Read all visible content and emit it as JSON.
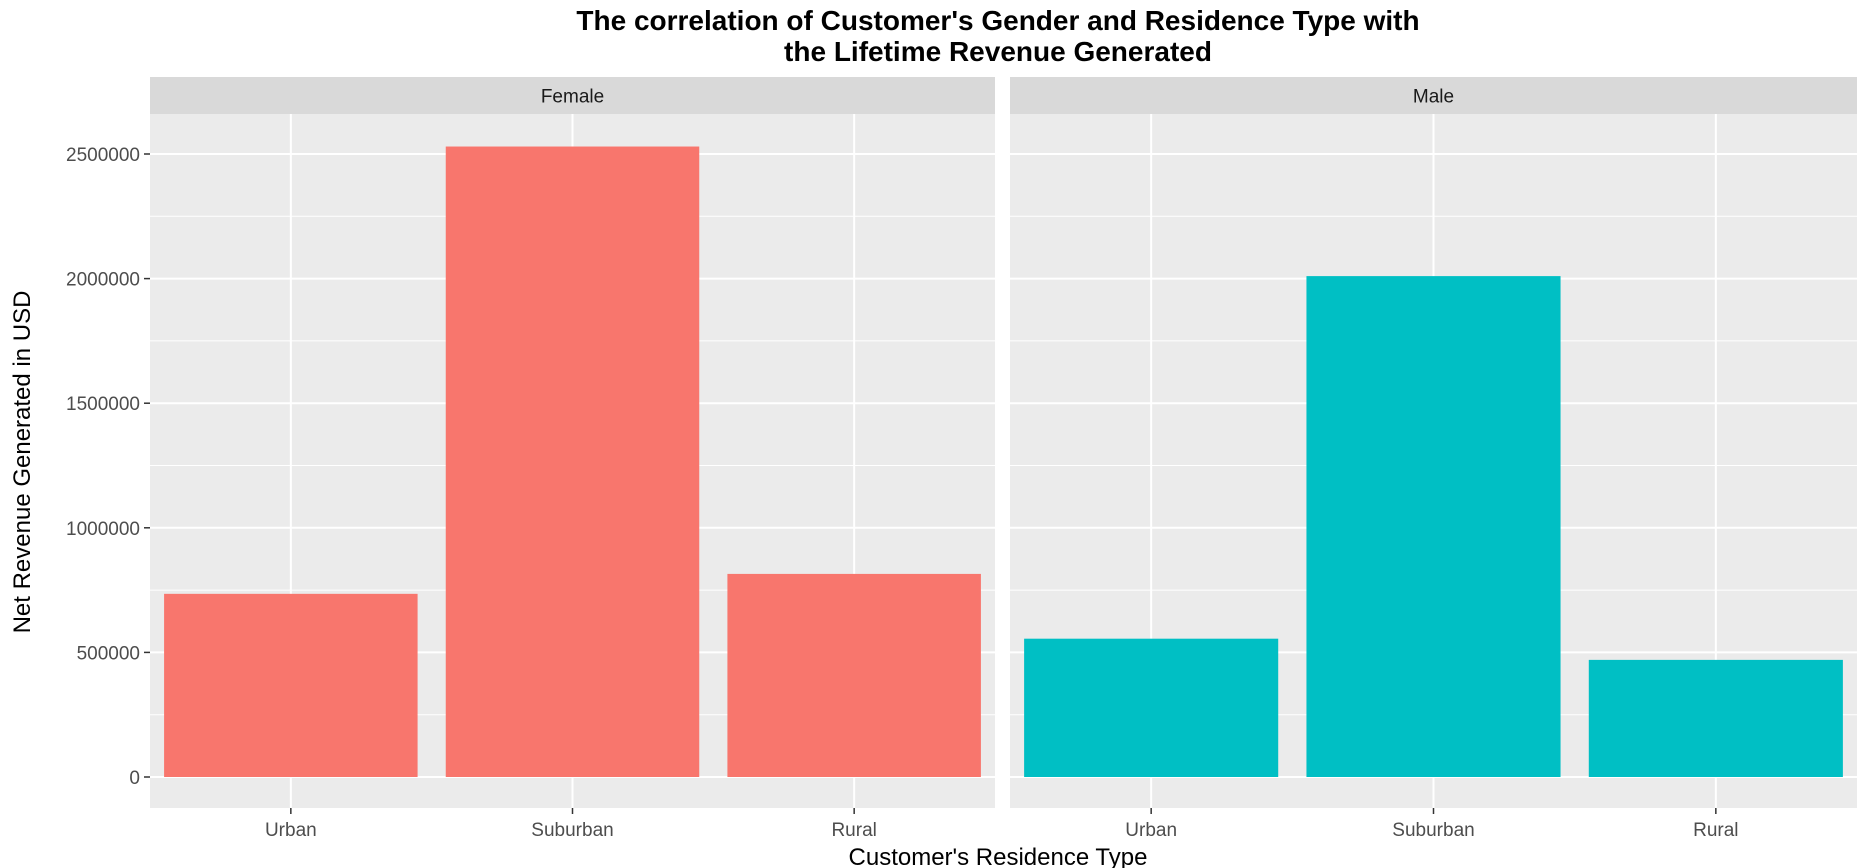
{
  "chart_data": {
    "type": "bar",
    "title": "The correlation of Customer's Gender and Residence Type with the Lifetime Revenue Generated",
    "title_lines": [
      "The correlation of Customer's Gender and Residence Type with",
      "the Lifetime Revenue Generated"
    ],
    "xlabel": "Customer's Residence Type",
    "ylabel": "Net Revenue Generated in USD",
    "categories": [
      "Urban",
      "Suburban",
      "Rural"
    ],
    "ylim": [
      0,
      2660000
    ],
    "yticks": [
      0,
      500000,
      1000000,
      1500000,
      2000000,
      2500000
    ],
    "ytick_labels": [
      "0",
      "500000",
      "1000000",
      "1500000",
      "2000000",
      "2500000"
    ],
    "grid": true,
    "legend": "none",
    "facets": [
      {
        "name": "Female",
        "color": "#F8766D",
        "values": [
          735000,
          2530000,
          815000
        ]
      },
      {
        "name": "Male",
        "color": "#00BFC4",
        "values": [
          555000,
          2010000,
          470000
        ]
      }
    ]
  },
  "colors": {
    "panel_background": "#EBEBEB",
    "strip_background": "#D9D9D9",
    "grid_major": "#FFFFFF",
    "female_fill": "#F8766D",
    "male_fill": "#00BFC4"
  }
}
